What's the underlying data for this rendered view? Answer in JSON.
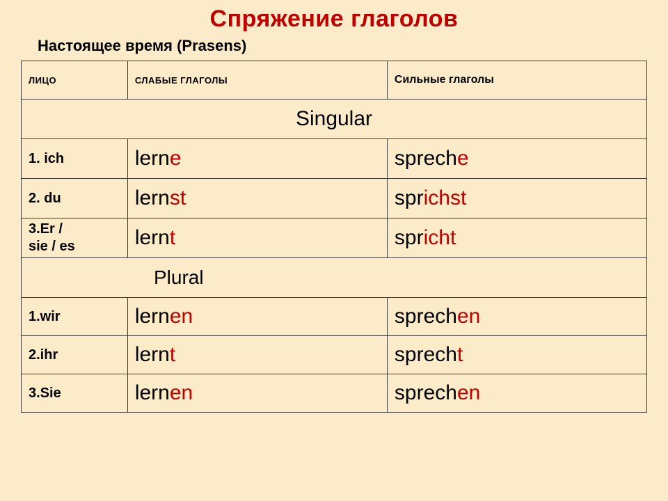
{
  "title": "Спряжение  глаголов",
  "subtitle": "Настоящее время (Prasens)",
  "headers": {
    "person": "ЛИЦО",
    "weak": "СЛАБЫЕ ГЛАГОЛЫ",
    "strong": "Сильные глаголы"
  },
  "sections": {
    "singular": "Singular",
    "plural": "Plural"
  },
  "colors": {
    "background": "#fcebc8",
    "accent": "#c00000",
    "text": "#000000",
    "border": "#3a3a3a"
  },
  "rows": {
    "s1": {
      "person": "1. ich",
      "weak": {
        "stem": "lern",
        "hl": "e"
      },
      "strong": {
        "pre": "sprech",
        "mid": "",
        "post": "",
        "hl": "e"
      }
    },
    "s2": {
      "person": "2. du",
      "weak": {
        "stem": "lern",
        "hl": "st"
      },
      "strong": {
        "pre": "spr",
        "mid": "ich",
        "post": "",
        "hl": "st"
      }
    },
    "s3": {
      "person_a": "3.Er /",
      "person_b": "sie / es",
      "weak": {
        "stem": "lern",
        "hl": "t"
      },
      "strong": {
        "pre": "spr",
        "mid": "ich",
        "post": "",
        "hl": "t"
      }
    },
    "p1": {
      "person": "1.wir",
      "weak": {
        "stem": "lern",
        "hl": "en"
      },
      "strong": {
        "pre": "sprech",
        "mid": "",
        "post": "",
        "hl": "en"
      }
    },
    "p2": {
      "person": "2.ihr",
      "weak": {
        "stem": "lern",
        "hl": "t"
      },
      "strong": {
        "pre": "sprech",
        "mid": "",
        "post": "",
        "hl": "t"
      }
    },
    "p3": {
      "person": "3.Sie",
      "weak": {
        "stem": "lern",
        "hl": "en"
      },
      "strong": {
        "pre": "sprech",
        "mid": "",
        "post": "",
        "hl": "en"
      }
    }
  }
}
